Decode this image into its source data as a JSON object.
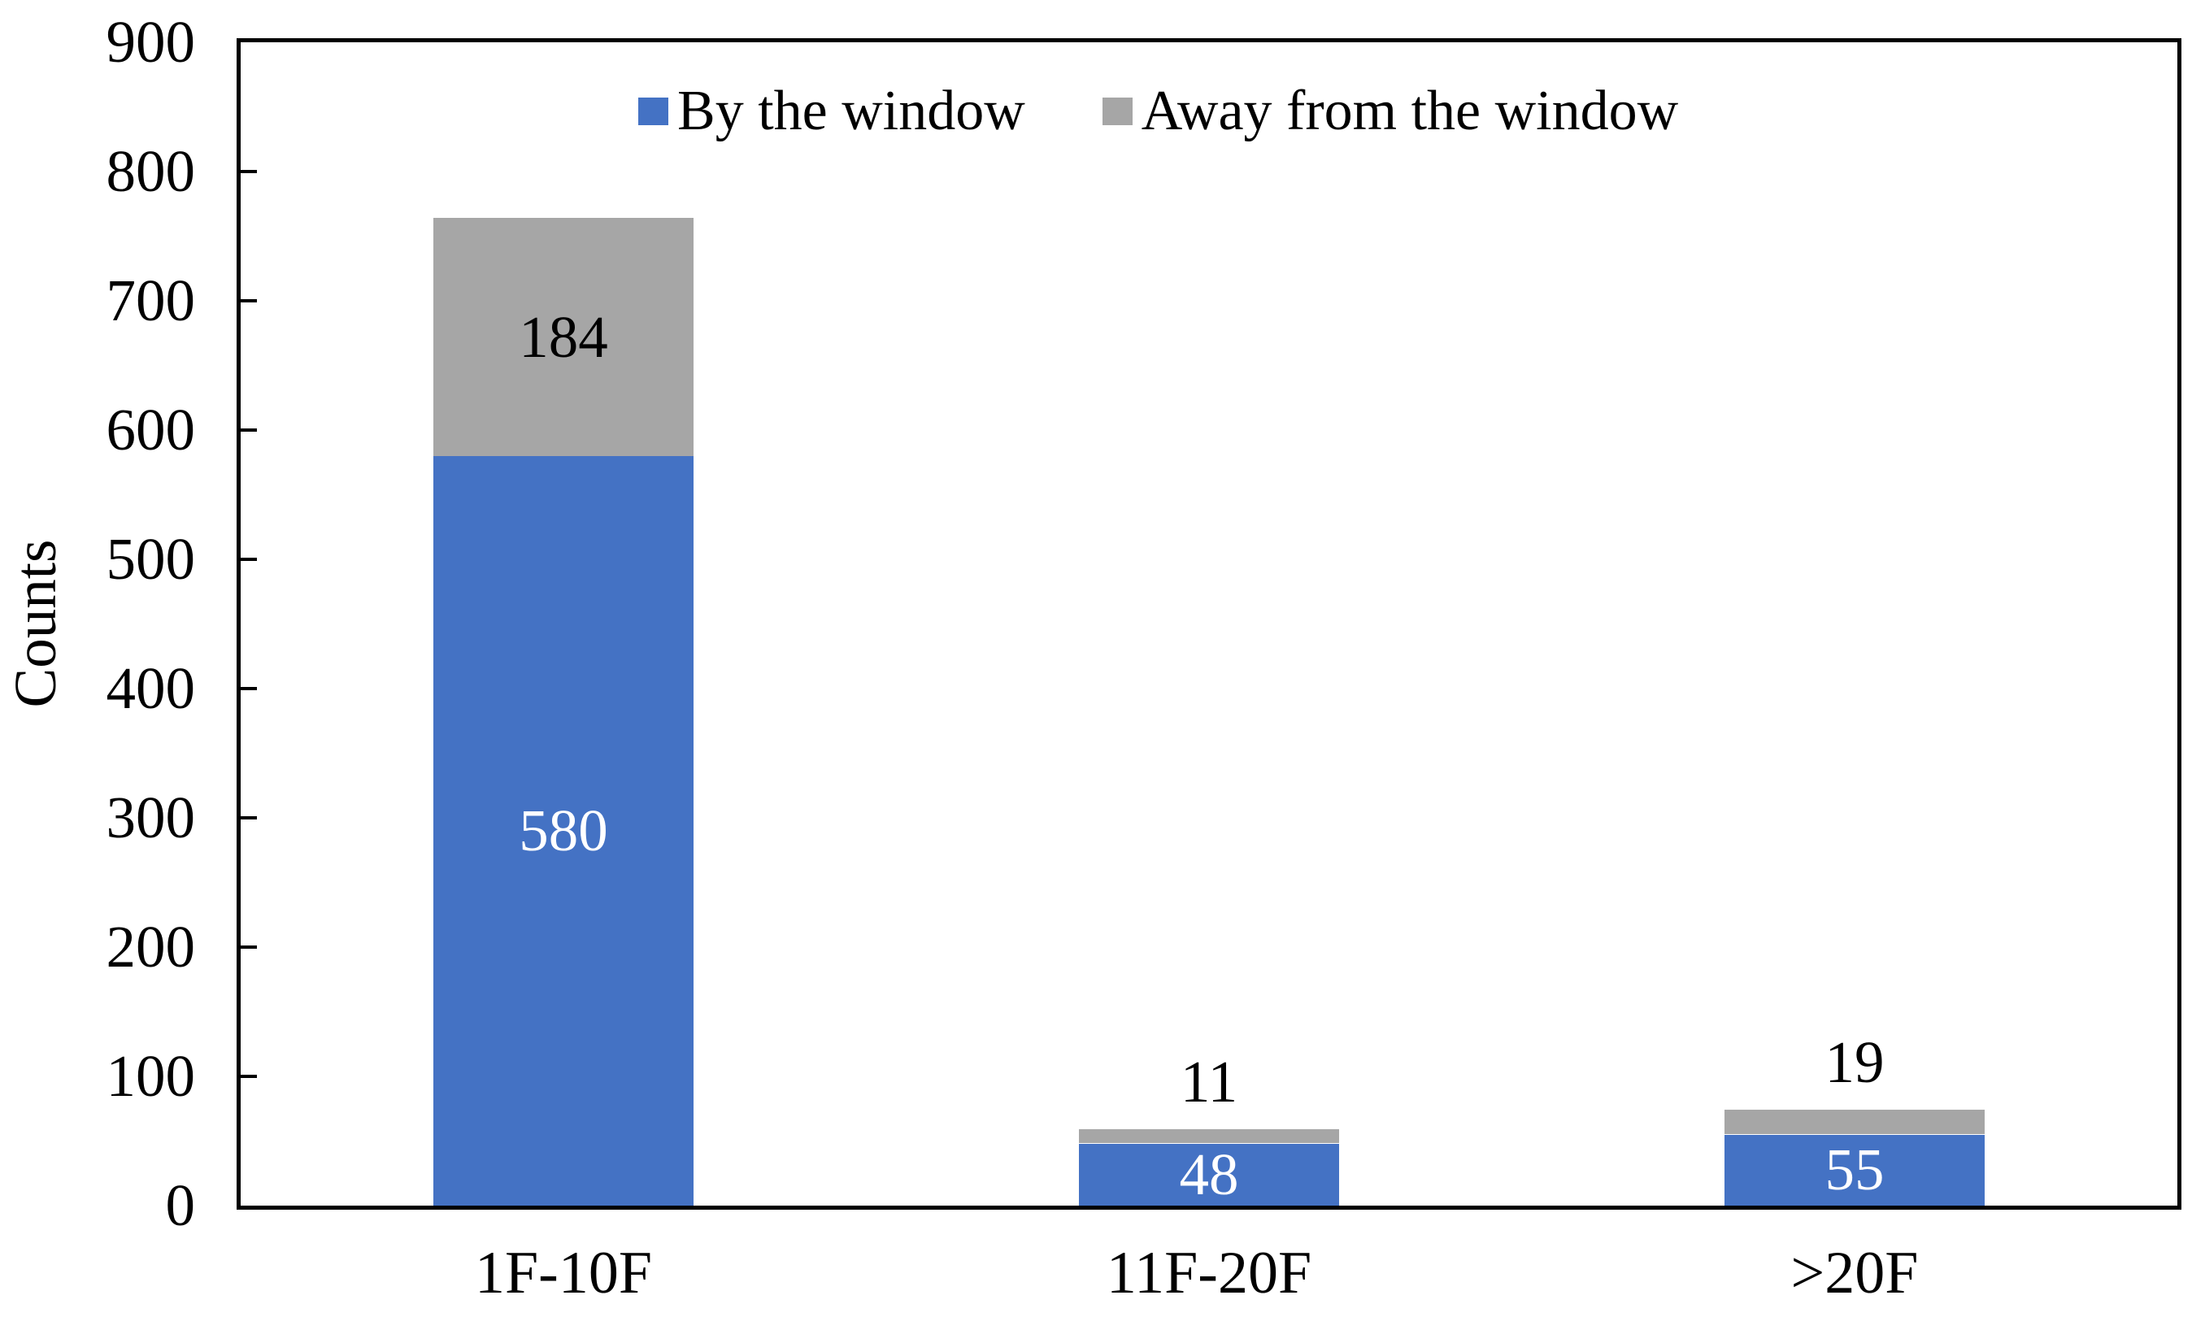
{
  "chart_data": {
    "type": "bar",
    "stacked": true,
    "title": "",
    "ylabel": "Counts",
    "xlabel": "",
    "ylim": [
      0,
      900
    ],
    "ytick_step": 100,
    "yticks": [
      0,
      100,
      200,
      300,
      400,
      500,
      600,
      700,
      800,
      900
    ],
    "grid": false,
    "legend_position": "top-center-inside",
    "categories": [
      "1F-10F",
      "11F-20F",
      ">20F"
    ],
    "series": [
      {
        "name": "By the window",
        "color": "#4472C4",
        "inside_label_color": "#FFFFFF",
        "values": [
          580,
          48,
          55
        ]
      },
      {
        "name": "Away from the window",
        "color": "#A6A6A6",
        "inside_label_color": "#000000",
        "values": [
          184,
          11,
          19
        ]
      }
    ],
    "totals": [
      764,
      59,
      74
    ],
    "colors": {
      "axis": "#000000",
      "text": "#000000",
      "background": "#FFFFFF"
    }
  }
}
